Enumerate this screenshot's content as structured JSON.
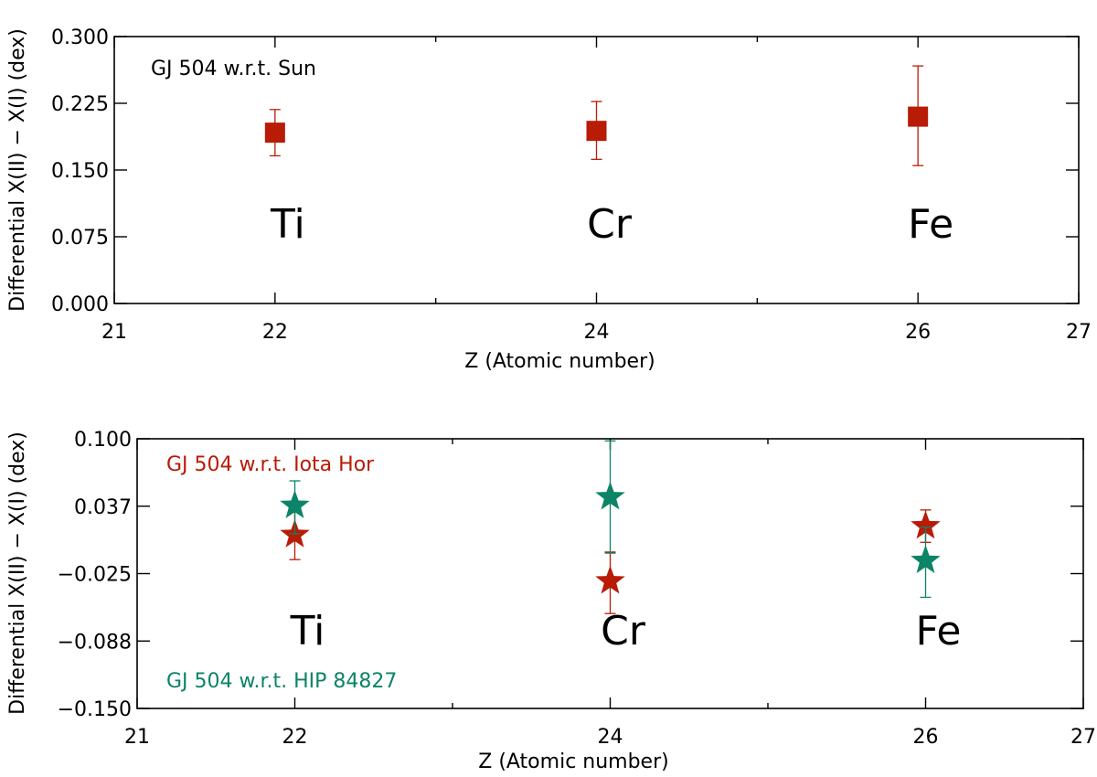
{
  "chart_data": [
    {
      "type": "scatter",
      "title": "",
      "xlabel": "Z  (Atomic number)",
      "ylabel": "Differential X(II) − X(I) (dex)",
      "xlim": [
        21,
        27
      ],
      "ylim": [
        0.0,
        0.3
      ],
      "xticks": [
        "21",
        "22",
        "24",
        "26",
        "27"
      ],
      "yticks": [
        "0.000",
        "0.075",
        "0.150",
        "0.225",
        "0.300"
      ],
      "grid": false,
      "annotations": [
        {
          "text": "GJ 504 w.r.t. Sun",
          "color": "#000000"
        }
      ],
      "element_labels": [
        {
          "text": "Ti",
          "x": 22
        },
        {
          "text": "Cr",
          "x": 24
        },
        {
          "text": "Fe",
          "x": 26
        }
      ],
      "series": [
        {
          "marker": "square",
          "color": "#b81b06",
          "points": [
            {
              "x": 22,
              "y": 0.192,
              "err_low": 0.166,
              "err_high": 0.218
            },
            {
              "x": 24,
              "y": 0.194,
              "err_low": 0.162,
              "err_high": 0.227
            },
            {
              "x": 26,
              "y": 0.21,
              "err_low": 0.155,
              "err_high": 0.267
            }
          ]
        }
      ]
    },
    {
      "type": "scatter",
      "title": "",
      "xlabel": "Z  (Atomic number)",
      "ylabel": "Differential X(II) − X(I) (dex)",
      "xlim": [
        21,
        27
      ],
      "ylim": [
        -0.15,
        0.1
      ],
      "xticks": [
        "21",
        "22",
        "24",
        "26",
        "27"
      ],
      "yticks": [
        "−0.150",
        "−0.088",
        "−0.025",
        "0.037",
        "0.100"
      ],
      "grid": false,
      "annotations": [
        {
          "text": "GJ 504 w.r.t. Iota Hor",
          "color": "#b81b06"
        },
        {
          "text": "GJ 504 w.r.t. HIP 84827",
          "color": "#0b8467"
        }
      ],
      "element_labels": [
        {
          "text": "Ti",
          "x": 22
        },
        {
          "text": "Cr",
          "x": 24
        },
        {
          "text": "Fe",
          "x": 26
        }
      ],
      "series": [
        {
          "marker": "star",
          "color": "#b81b06",
          "points": [
            {
              "x": 22,
              "y": 0.011,
              "err_low": -0.012,
              "err_high": 0.032
            },
            {
              "x": 24,
              "y": -0.032,
              "err_low": -0.062,
              "err_high": -0.005
            },
            {
              "x": 26,
              "y": 0.019,
              "err_low": 0.004,
              "err_high": 0.034
            }
          ]
        },
        {
          "marker": "star",
          "color": "#0b8467",
          "points": [
            {
              "x": 22,
              "y": 0.038,
              "err_low": 0.012,
              "err_high": 0.061
            },
            {
              "x": 24,
              "y": 0.046,
              "err_low": -0.006,
              "err_high": 0.098
            },
            {
              "x": 26,
              "y": -0.013,
              "err_low": -0.047,
              "err_high": 0.018
            }
          ]
        }
      ]
    }
  ]
}
